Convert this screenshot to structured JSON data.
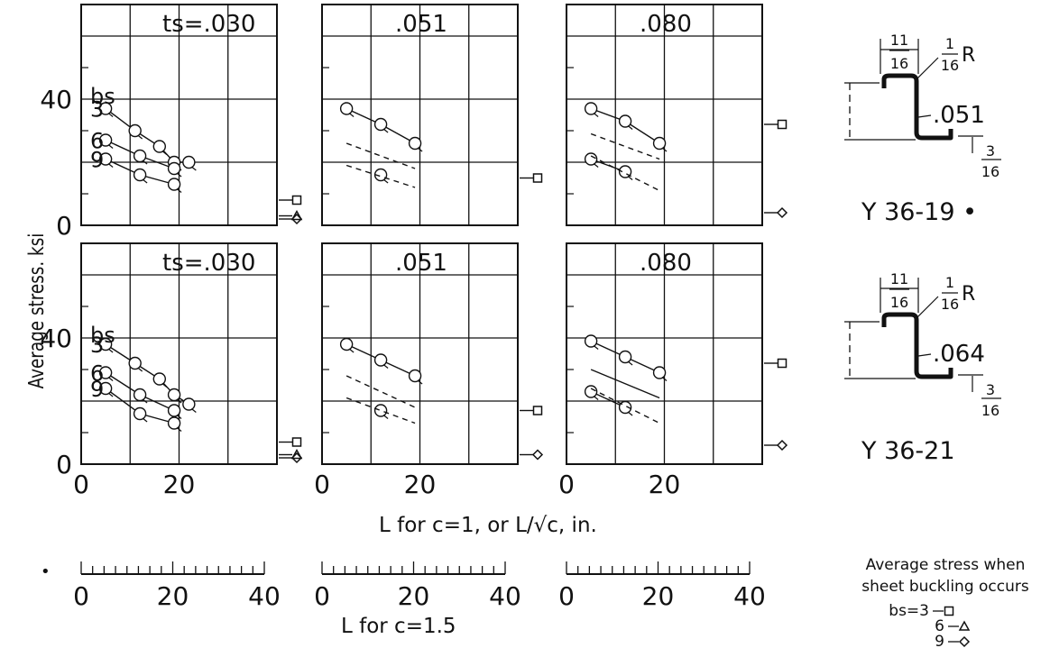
{
  "chart_data": {
    "type": "line",
    "ylabel": "Average stress. ksi",
    "xlabel": "L for c=1, or L/√c, in.",
    "xlabel2": "L for c=1.5",
    "x2_ticks": [
      "0",
      "20",
      "40"
    ],
    "y_ticks": [
      "0",
      "40"
    ],
    "x_ticks": [
      "0",
      "20"
    ],
    "bs_label": "bs",
    "panels": [
      {
        "row": "Y 36-19",
        "ts": ".030",
        "title": "ts=.030",
        "bs_labels": [
          "3",
          "6",
          "9"
        ],
        "series": [
          {
            "bs": "3",
            "x": [
              5,
              11,
              16,
              19,
              22
            ],
            "y": [
              37,
              30,
              25,
              20,
              20
            ],
            "style": "solid",
            "markers": true
          },
          {
            "bs": "6",
            "x": [
              5,
              12,
              19
            ],
            "y": [
              27,
              22,
              18
            ],
            "style": "solid",
            "markers": true
          },
          {
            "bs": "9",
            "x": [
              5,
              12,
              19
            ],
            "y": [
              21,
              16,
              13
            ],
            "style": "solid",
            "markers": true
          }
        ],
        "buckling": {
          "square": 8,
          "triangle": 3,
          "diamond": 2
        }
      },
      {
        "row": "Y 36-19",
        "ts": ".051",
        "title": ".051",
        "bs_labels": [],
        "series": [
          {
            "bs": "3",
            "x": [
              5,
              12,
              19
            ],
            "y": [
              37,
              32,
              26
            ],
            "style": "solid",
            "markers": true
          },
          {
            "bs": "6",
            "x": [
              5,
              19
            ],
            "y": [
              26,
              18
            ],
            "style": "dashed",
            "markers": false
          },
          {
            "bs": "9",
            "x": [
              12
            ],
            "y": [
              16
            ],
            "style": "solid",
            "markers": true
          },
          {
            "bs": "9d",
            "x": [
              5,
              19
            ],
            "y": [
              19,
              12
            ],
            "style": "dashed",
            "markers": false
          }
        ],
        "buckling": {
          "square": 15
        }
      },
      {
        "row": "Y 36-19",
        "ts": ".080",
        "title": ".080",
        "bs_labels": [],
        "series": [
          {
            "bs": "3",
            "x": [
              5,
              12,
              19
            ],
            "y": [
              37,
              33,
              26
            ],
            "style": "solid",
            "markers": true
          },
          {
            "bs": "6",
            "x": [
              5,
              19
            ],
            "y": [
              29,
              21
            ],
            "style": "dashed",
            "markers": false
          },
          {
            "bs": "9",
            "x": [
              5,
              12
            ],
            "y": [
              21,
              17
            ],
            "style": "solid",
            "markers": true
          },
          {
            "bs": "9d",
            "x": [
              5,
              19
            ],
            "y": [
              22,
              11
            ],
            "style": "dashed",
            "markers": false
          }
        ],
        "buckling": {
          "square": 32,
          "diamond": 4
        }
      },
      {
        "row": "Y 36-21",
        "ts": ".030",
        "title": "ts=.030",
        "bs_labels": [
          "3",
          "6",
          "9"
        ],
        "series": [
          {
            "bs": "3",
            "x": [
              5,
              11,
              16,
              19,
              22
            ],
            "y": [
              38,
              32,
              27,
              22,
              19
            ],
            "style": "solid",
            "markers": true
          },
          {
            "bs": "6",
            "x": [
              5,
              12,
              19
            ],
            "y": [
              29,
              22,
              17
            ],
            "style": "solid",
            "markers": true
          },
          {
            "bs": "9",
            "x": [
              5,
              12,
              19
            ],
            "y": [
              24,
              16,
              13
            ],
            "style": "solid",
            "markers": true
          }
        ],
        "buckling": {
          "square": 7,
          "triangle": 3,
          "diamond": 2
        }
      },
      {
        "row": "Y 36-21",
        "ts": ".051",
        "title": ".051",
        "bs_labels": [],
        "series": [
          {
            "bs": "3",
            "x": [
              5,
              12,
              19
            ],
            "y": [
              38,
              33,
              28
            ],
            "style": "solid",
            "markers": true
          },
          {
            "bs": "6",
            "x": [
              5,
              19
            ],
            "y": [
              28,
              18
            ],
            "style": "dashed",
            "markers": false
          },
          {
            "bs": "9",
            "x": [
              12
            ],
            "y": [
              17
            ],
            "style": "solid",
            "markers": true
          },
          {
            "bs": "9d",
            "x": [
              5,
              19
            ],
            "y": [
              21,
              13
            ],
            "style": "dashed",
            "markers": false
          }
        ],
        "buckling": {
          "square": 17,
          "diamond": 3
        }
      },
      {
        "row": "Y 36-21",
        "ts": ".080",
        "title": ".080",
        "bs_labels": [],
        "series": [
          {
            "bs": "3",
            "x": [
              5,
              12,
              19
            ],
            "y": [
              39,
              34,
              29
            ],
            "style": "solid",
            "markers": true
          },
          {
            "bs": "6",
            "x": [
              5,
              19
            ],
            "y": [
              30,
              21
            ],
            "style": "solid",
            "markers": false
          },
          {
            "bs": "9",
            "x": [
              5,
              12
            ],
            "y": [
              23,
              18
            ],
            "style": "solid",
            "markers": true
          },
          {
            "bs": "9d",
            "x": [
              5,
              19
            ],
            "y": [
              24,
              13
            ],
            "style": "dashed",
            "markers": false
          }
        ],
        "buckling": {
          "square": 32,
          "diamond": 6
        }
      }
    ],
    "sections": [
      {
        "name": "Y 36-19",
        "thickness": ".051",
        "flange": "11/16",
        "radius_num": "1",
        "radius_den": "16",
        "radius_suffix": "R",
        "lip_num": "3",
        "lip_den": "16",
        "flange_num": "11",
        "flange_den": "16"
      },
      {
        "name": "Y 36-21",
        "thickness": ".064",
        "flange": "11/16",
        "radius_num": "1",
        "radius_den": "16",
        "radius_suffix": "R",
        "lip_num": "3",
        "lip_den": "16",
        "flange_num": "11",
        "flange_den": "16"
      }
    ],
    "legend": {
      "title_line1": "Average stress when",
      "title_line2": "sheet buckling occurs",
      "entries": [
        {
          "label": "bs=3",
          "marker": "square"
        },
        {
          "label": "6",
          "marker": "triangle"
        },
        {
          "label": "9",
          "marker": "diamond"
        }
      ]
    }
  }
}
